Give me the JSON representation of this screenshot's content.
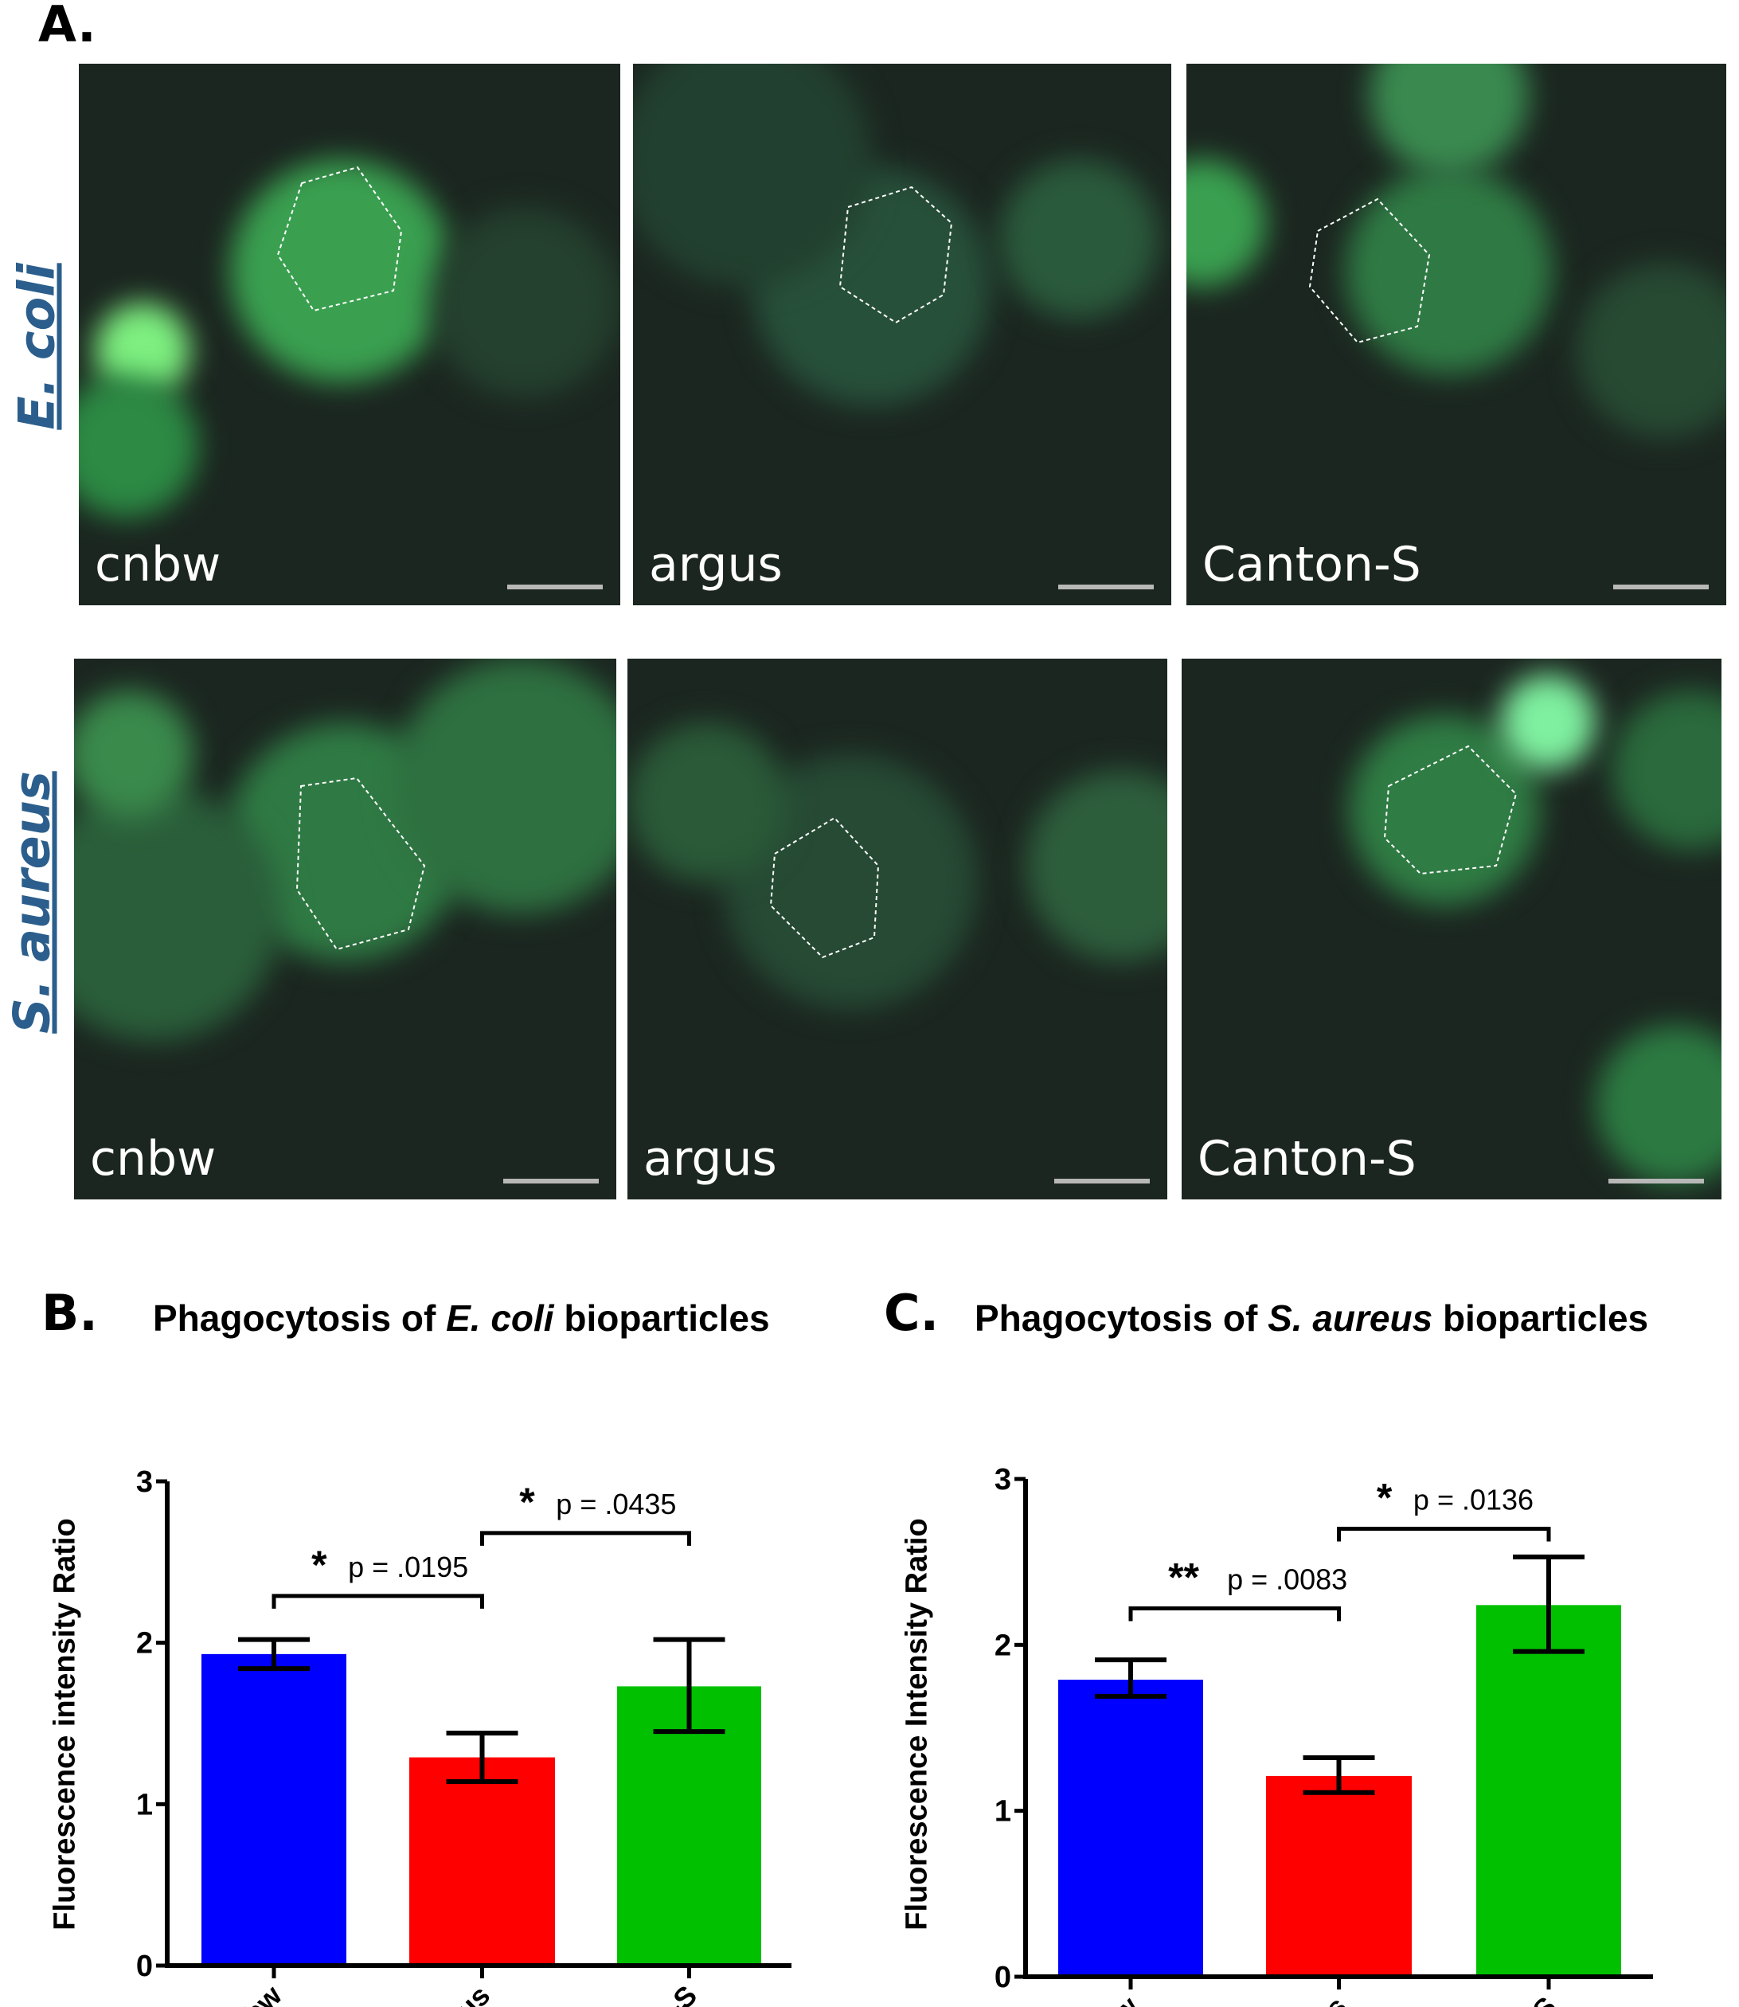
{
  "panel_a": {
    "label": "A.",
    "rows": [
      {
        "label": "E. coli",
        "images": [
          "cnbw",
          "argus",
          "Canton-S"
        ]
      },
      {
        "label": "S. aureus",
        "images": [
          "cnbw",
          "argus",
          "Canton-S"
        ]
      }
    ]
  },
  "chart_data": [
    {
      "panel": "B.",
      "type": "bar",
      "title_parts": [
        "Phagocytosis of ",
        "E. coli",
        " bioparticles"
      ],
      "ylabel": "Fluorescence intensity Ratio",
      "ylim": [
        0,
        3
      ],
      "yticks": [
        "0",
        "1",
        "2",
        "3"
      ],
      "categories": [
        "cnbw",
        "argus",
        "Canton-S"
      ],
      "values": [
        1.93,
        1.29,
        1.73
      ],
      "error_low": [
        1.84,
        1.14,
        1.45
      ],
      "error_high": [
        2.02,
        1.44,
        2.02
      ],
      "colors": [
        "#0000ff",
        "#ff0000",
        "#00c000"
      ],
      "significance": [
        {
          "from": "cnbw",
          "to": "argus",
          "stars": "*",
          "p": "p = .0195"
        },
        {
          "from": "argus",
          "to": "Canton-S",
          "stars": "*",
          "p": "p = .0435"
        }
      ],
      "grid": false
    },
    {
      "panel": "C.",
      "type": "bar",
      "title_parts": [
        "Phagocytosis of ",
        "S. aureus",
        " bioparticles"
      ],
      "ylabel": "Fluorescence Intensity Ratio",
      "ylim": [
        0,
        3
      ],
      "yticks": [
        "0",
        "1",
        "2",
        "3"
      ],
      "categories": [
        "cnbw",
        "argus",
        "Canton-S"
      ],
      "values": [
        1.79,
        1.21,
        2.24
      ],
      "error_low": [
        1.69,
        1.11,
        1.96
      ],
      "error_high": [
        1.91,
        1.32,
        2.53
      ],
      "colors": [
        "#0000ff",
        "#ff0000",
        "#00c000"
      ],
      "significance": [
        {
          "from": "cnbw",
          "to": "argus",
          "stars": "**",
          "p": "p = .0083"
        },
        {
          "from": "argus",
          "to": "Canton-S",
          "stars": "*",
          "p": "p = .0136"
        }
      ],
      "grid": false
    }
  ]
}
